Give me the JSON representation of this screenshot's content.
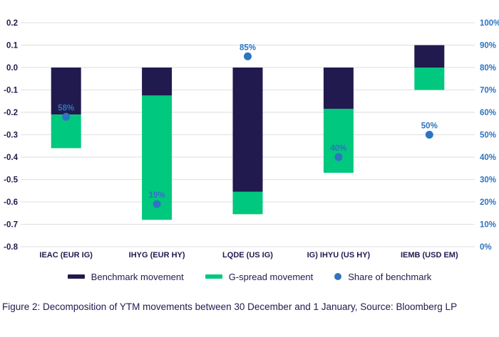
{
  "chart_data": {
    "type": "bar",
    "variant": "stacked-columns-with-scatter-overlay",
    "title": "",
    "xlabel": "",
    "ylabel": "",
    "grid": true,
    "legend_position": "bottom",
    "categories": [
      "IEAC (EUR IG)",
      "IHYG (EUR HY)",
      "LQDE (US IG)",
      "IG) IHYU (US HY)",
      "IEMB (USD EM)"
    ],
    "series": [
      {
        "name": "Benchmark movement",
        "color": "#211a4e",
        "values": [
          -0.21,
          -0.125,
          -0.555,
          -0.185,
          0.1
        ]
      },
      {
        "name": "G-spread movement",
        "color": "#00c87e",
        "values": [
          -0.15,
          -0.555,
          -0.1,
          -0.285,
          -0.1
        ]
      }
    ],
    "scatter": {
      "name": "Share of benchmark",
      "axis": "right",
      "color": "#2e74c0",
      "values_pct": [
        58,
        19,
        85,
        40,
        50
      ],
      "labels": [
        "58%",
        "19%",
        "85%",
        "40%",
        "50%"
      ]
    },
    "left_axis": {
      "min": -0.8,
      "max": 0.2,
      "tick_step": 0.1,
      "tick_labels": [
        "0.2",
        "0.1",
        "0.0",
        "-0.1",
        "-0.2",
        "-0.3",
        "-0.4",
        "-0.5",
        "-0.6",
        "-0.7",
        "-0.8"
      ]
    },
    "right_axis": {
      "min": 0,
      "max": 100,
      "tick_step": 10,
      "tick_labels": [
        "100%",
        "90%",
        "80%",
        "70%",
        "60%",
        "50%",
        "40%",
        "30%",
        "20%",
        "10%",
        "0%"
      ]
    }
  },
  "colors": {
    "benchmark": "#211a4e",
    "gspread": "#00c87e",
    "share_dot": "#2e74c0",
    "left_axis_text": "#211a4e",
    "right_axis_text": "#2e74c0",
    "category_text": "#211a4e",
    "gridline": "#e3e2e6",
    "caption_text": "#211a4e"
  },
  "caption": "Figure 2: Decomposition of YTM movements between 30 December and 1 January, Source: Bloomberg LP"
}
